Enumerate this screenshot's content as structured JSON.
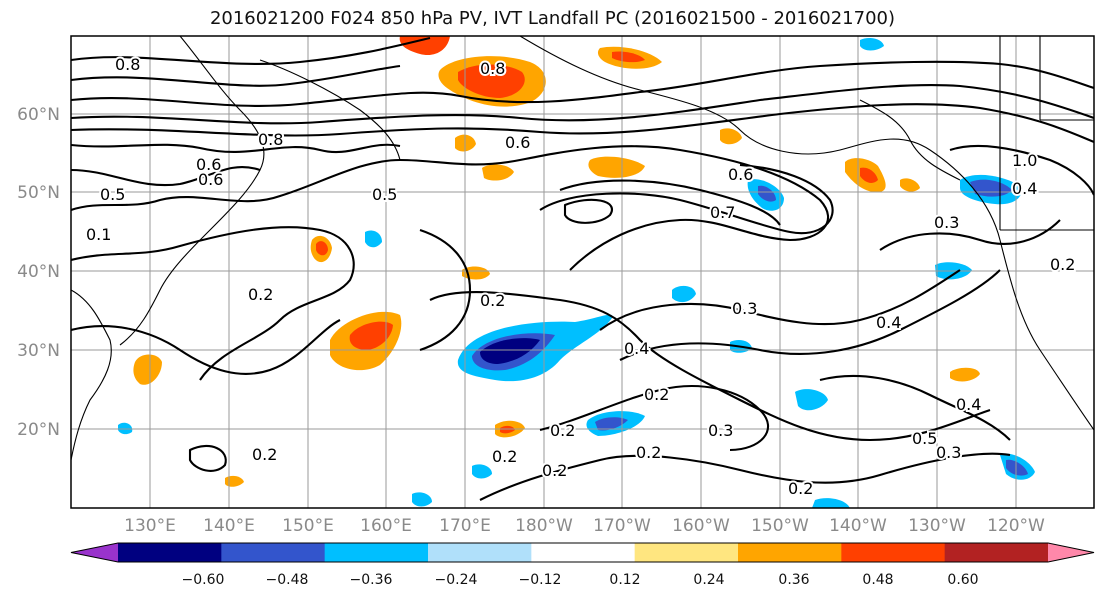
{
  "title": "2016021200 F024 850 hPa PV, IVT Landfall PC (2016021500 - 2016021700)",
  "map": {
    "lat_labels": [
      "60°N",
      "50°N",
      "40°N",
      "30°N",
      "20°N"
    ],
    "lon_labels": [
      "130°E",
      "140°E",
      "150°E",
      "160°E",
      "170°E",
      "180°W",
      "170°W",
      "160°W",
      "150°W",
      "140°W",
      "130°W",
      "120°W"
    ],
    "contour_labels": [
      "0.8",
      "0.2",
      "0.6",
      "0.5",
      "0.8",
      "0.6",
      "0.1",
      "0.6",
      "0.7",
      "0.2",
      "0.2",
      "0.4",
      "0.3",
      "0.3",
      "0.4",
      "0.2",
      "0.2",
      "0.2",
      "0.2",
      "0.2",
      "0.3",
      "0.5",
      "0.3",
      "0.4",
      "0.2",
      "0.8",
      "0.6",
      "0.4",
      "0.2",
      "0.5",
      "1.0"
    ]
  },
  "colorbar": {
    "tick_labels": [
      "−0.60",
      "−0.48",
      "−0.36",
      "−0.24",
      "−0.12",
      "0.12",
      "0.24",
      "0.36",
      "0.48",
      "0.60"
    ],
    "colors": [
      "#9933cc",
      "#000080",
      "#3355cc",
      "#00bfff",
      "#b0e0fa",
      "#ffffff",
      "#ffe680",
      "#ffa500",
      "#ff4000",
      "#b22222",
      "#ff88aa"
    ]
  }
}
